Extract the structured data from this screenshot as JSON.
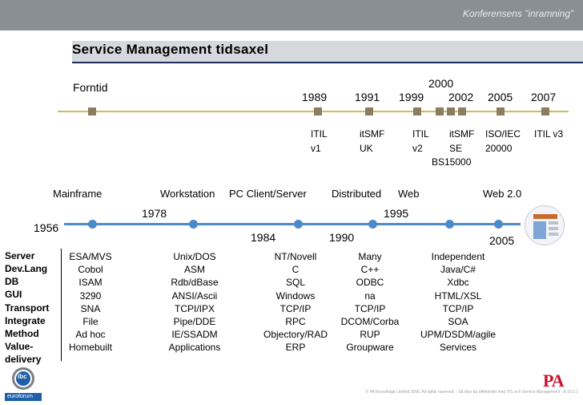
{
  "header": {
    "conference_label": "Konferensens ”inramning”"
  },
  "slide": {
    "title": "Service Management tidsaxel"
  },
  "timeline1": {
    "forntid": "Forntid",
    "years": [
      "1989",
      "1991",
      "1999",
      "2000",
      "2002",
      "2005",
      "2007"
    ],
    "events": [
      {
        "line1": "ITIL",
        "line2": "v1"
      },
      {
        "line1": "itSMF",
        "line2": "UK"
      },
      {
        "line1": "ITIL",
        "line2": "v2"
      },
      {
        "line1": "itSMF",
        "line2": "SE"
      },
      {
        "line1": "ISO/IEC",
        "line2": "20000"
      },
      {
        "line1": "ITIL v3",
        "line2": ""
      }
    ],
    "bs_label": "BS15000"
  },
  "timeline2": {
    "eras": [
      "Mainframe",
      "Workstation",
      "PC Client/Server",
      "Distributed",
      "Web",
      "Web 2.0"
    ],
    "years": [
      "1956",
      "1978",
      "1984",
      "1990",
      "1995",
      "2005"
    ]
  },
  "table": {
    "rows": [
      "Server",
      "Dev.Lang",
      "DB",
      "GUI",
      "Transport",
      "Integrate",
      "Method",
      "Value-",
      "delivery"
    ],
    "columns": [
      [
        "ESA/MVS",
        "Cobol",
        "ISAM",
        "3290",
        "SNA",
        "File",
        "Ad hoc",
        "Homebuilt"
      ],
      [
        "Unix/DOS",
        "ASM",
        "Rdb/dBase",
        "ANSI/Ascii",
        "TCPI/IPX",
        "Pipe/DDE",
        "IE/SSADM",
        "Applications"
      ],
      [
        "NT/Novell",
        "C",
        "SQL",
        "Windows",
        "TCP/IP",
        "RPC",
        "Objectory/RAD",
        "ERP"
      ],
      [
        "Many",
        "C++",
        "ODBC",
        "na",
        "TCP/IP",
        "DCOM/Corba",
        "RUP",
        "Groupware"
      ],
      [
        "Independent",
        "Java/C#",
        "Xdbc",
        "HTML/XSL",
        "TCP/IP",
        "SOA",
        "UPM/DSDM/agile",
        "Services"
      ]
    ]
  },
  "logos": {
    "ibc": "ibc",
    "euroforum": "euroforum",
    "pa": "PA"
  },
  "footer": {
    "text": "© PA Knowledge Limited 2006. All rights reserved. - Så ökar du effektivitet med ITIL och Service Management - 8-10:1:1"
  }
}
